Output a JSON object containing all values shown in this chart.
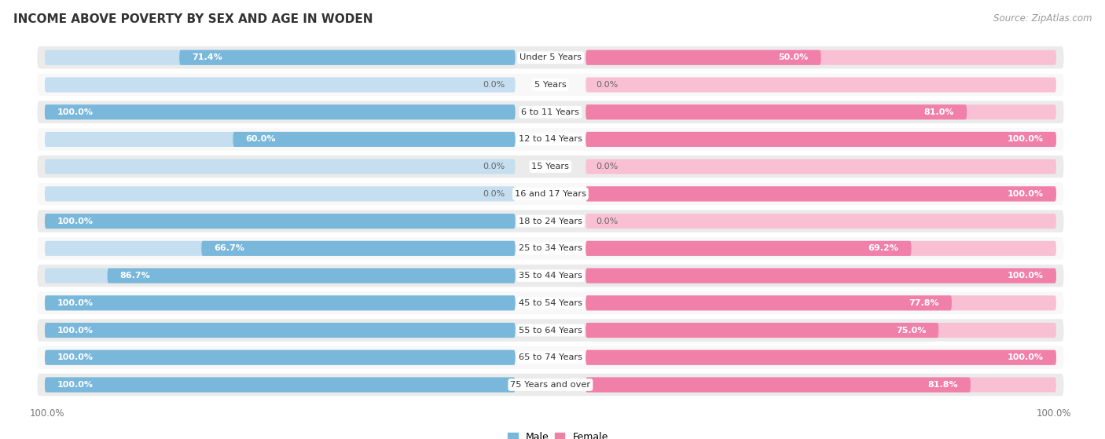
{
  "title": "INCOME ABOVE POVERTY BY SEX AND AGE IN WODEN",
  "source": "Source: ZipAtlas.com",
  "categories": [
    "Under 5 Years",
    "5 Years",
    "6 to 11 Years",
    "12 to 14 Years",
    "15 Years",
    "16 and 17 Years",
    "18 to 24 Years",
    "25 to 34 Years",
    "35 to 44 Years",
    "45 to 54 Years",
    "55 to 64 Years",
    "65 to 74 Years",
    "75 Years and over"
  ],
  "male": [
    71.4,
    0.0,
    100.0,
    60.0,
    0.0,
    0.0,
    100.0,
    66.7,
    86.7,
    100.0,
    100.0,
    100.0,
    100.0
  ],
  "female": [
    50.0,
    0.0,
    81.0,
    100.0,
    0.0,
    100.0,
    0.0,
    69.2,
    100.0,
    77.8,
    75.0,
    100.0,
    81.8
  ],
  "male_color": "#7ab8db",
  "female_color": "#f080a8",
  "male_light": "#c5dff0",
  "female_light": "#f9c0d4",
  "row_odd_bg": "#ebebeb",
  "row_even_bg": "#f8f8f8",
  "max_val": 100.0
}
